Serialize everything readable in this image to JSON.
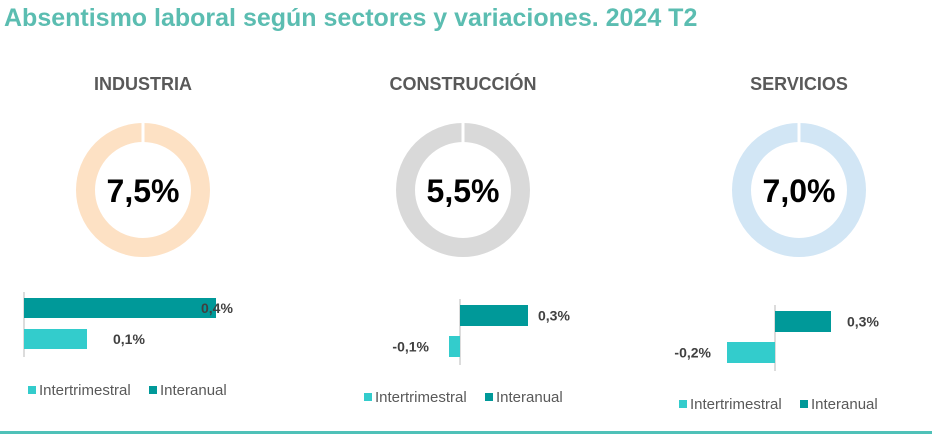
{
  "title": "Absentismo laboral según sectores y variaciones. 2024 T2",
  "colors": {
    "title": "#5bbdb1",
    "intertrimestral": "#33cccc",
    "interanual": "#009999",
    "industria_donut": "#fde1c4",
    "construccion_donut": "#d9d9d9",
    "servicios_donut": "#d2e6f5",
    "bottom_rule": "#4fc1b8"
  },
  "chart_data": [
    {
      "type": "pie",
      "title": "INDUSTRIA",
      "center_label": "7,5%",
      "value": 7.5
    },
    {
      "type": "pie",
      "title": "CONSTRUCCIÓN",
      "center_label": "5,5%",
      "value": 5.5
    },
    {
      "type": "pie",
      "title": "SERVICIOS",
      "center_label": "7,0%",
      "value": 7.0
    },
    {
      "type": "bar",
      "orientation": "horizontal",
      "categories": [
        "Interanual",
        "Intertrimestral"
      ],
      "values": [
        0.4,
        0.1
      ],
      "labels": [
        "0,4%",
        "0,1%"
      ],
      "legend": [
        "Intertrimestral",
        "Interanual"
      ],
      "legend_position": "bottom"
    },
    {
      "type": "bar",
      "orientation": "horizontal",
      "categories": [
        "Interanual",
        "Intertrimestral"
      ],
      "values": [
        0.3,
        -0.1
      ],
      "labels": [
        "0,3%",
        "-0,1%"
      ],
      "legend": [
        "Intertrimestral",
        "Interanual"
      ],
      "legend_position": "bottom"
    },
    {
      "type": "bar",
      "orientation": "horizontal",
      "categories": [
        "Interanual",
        "Intertrimestral"
      ],
      "values": [
        0.3,
        -0.2
      ],
      "labels": [
        "0,3%",
        "-0,2%"
      ],
      "legend": [
        "Intertrimestral",
        "Interanual"
      ],
      "legend_position": "bottom"
    }
  ]
}
